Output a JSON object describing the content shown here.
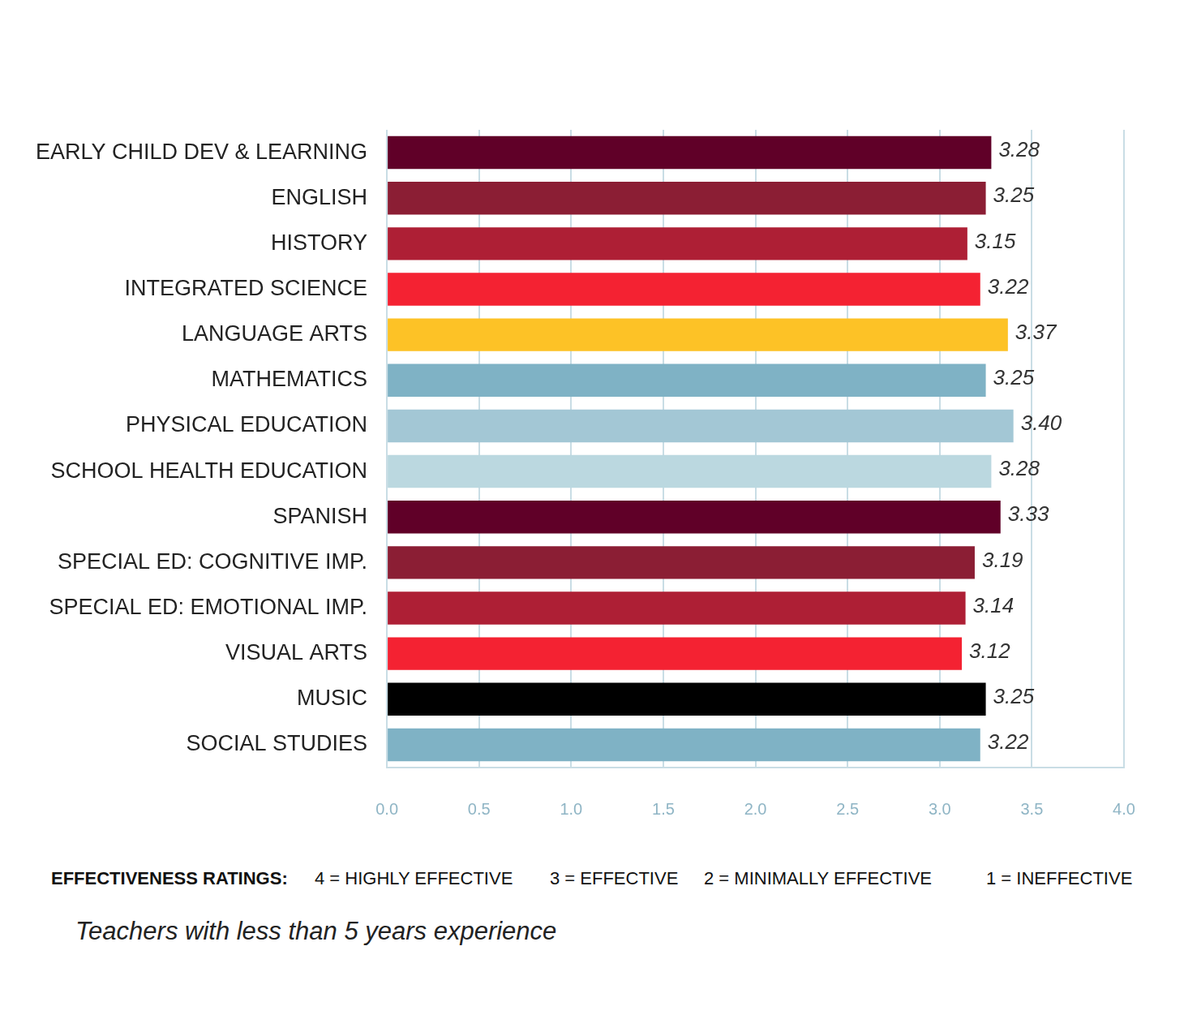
{
  "chart_data": {
    "type": "bar",
    "orientation": "horizontal",
    "categories": [
      "EARLY CHILD DEV & LEARNING",
      "ENGLISH",
      "HISTORY",
      "INTEGRATED SCIENCE",
      "LANGUAGE ARTS",
      "MATHEMATICS",
      "PHYSICAL EDUCATION",
      "SCHOOL HEALTH EDUCATION",
      "SPANISH",
      "SPECIAL ED: COGNITIVE IMP.",
      "SPECIAL ED: EMOTIONAL IMP.",
      "VISUAL ARTS",
      "MUSIC",
      "SOCIAL STUDIES"
    ],
    "values": [
      3.28,
      3.25,
      3.15,
      3.22,
      3.37,
      3.25,
      3.4,
      3.28,
      3.33,
      3.19,
      3.14,
      3.12,
      3.25,
      3.22
    ],
    "value_labels": [
      "3.28",
      "3.25",
      "3.15",
      "3.22",
      "3.37",
      "3.25",
      "3.40",
      "3.28",
      "3.33",
      "3.19",
      "3.14",
      "3.12",
      "3.25",
      "3.22"
    ],
    "colors": [
      "#600028",
      "#8b1e34",
      "#ae1f35",
      "#f42232",
      "#fdc226",
      "#7fb2c5",
      "#a3c7d5",
      "#bbd8e0",
      "#600028",
      "#8b1e34",
      "#ae1f35",
      "#f42232",
      "#000000",
      "#7fb2c5"
    ],
    "xlim": [
      0,
      4
    ],
    "xticks": [
      {
        "value": 0,
        "label": "0.0"
      },
      0.5,
      {
        "value": 1,
        "label": "1.0"
      },
      1.5,
      {
        "value": 2,
        "label": "2.0"
      },
      2.5,
      {
        "value": 3,
        "label": "3.0"
      },
      3.5,
      {
        "value": 4,
        "label": "4.0"
      }
    ],
    "grid": true,
    "data_labels": true,
    "annotations": [
      "EFFECTIVENESS RATINGS:",
      "4 = HIGHLY EFFECTIVE",
      "3 = EFFECTIVE",
      "2 = MINIMALLY EFFECTIVE",
      "1 = INEFFECTIVE"
    ],
    "subtitle": "Teachers with less than 5 years experience"
  }
}
